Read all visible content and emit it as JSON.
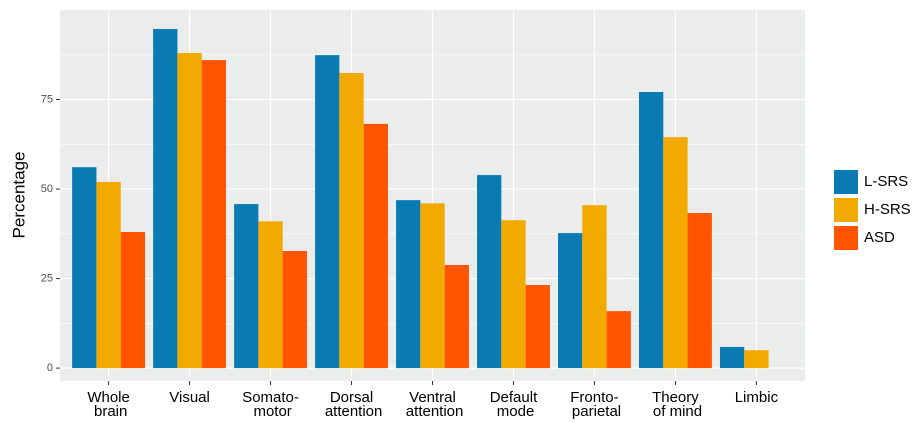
{
  "chart_data": {
    "type": "bar",
    "y_label": "Percentage",
    "categories": [
      "Whole\nbrain",
      "Visual",
      "Somato-\nmotor",
      "Dorsal\nattention",
      "Ventral\nattention",
      "Default\nmode",
      "Fronto-\nparietal",
      "Theory\nof mind",
      "Limbic"
    ],
    "series": [
      {
        "name": "L-SRS",
        "color": "#0a7bb2",
        "values": [
          56.1,
          94.7,
          45.8,
          87.4,
          46.9,
          53.9,
          37.7,
          77.1,
          5.9
        ]
      },
      {
        "name": "H-SRS",
        "color": "#f2a900",
        "values": [
          52,
          88,
          41,
          82.4,
          46,
          41.3,
          45.5,
          64.5,
          5
        ]
      },
      {
        "name": "ASD",
        "color": "#ff5400",
        "values": [
          38,
          86,
          32.7,
          68.2,
          28.8,
          23.2,
          15.9,
          43.3,
          0
        ]
      }
    ],
    "ylim": [
      -3.6,
      100
    ],
    "yticks": [
      0,
      25,
      50,
      75
    ],
    "grid": true,
    "legend": "right"
  }
}
